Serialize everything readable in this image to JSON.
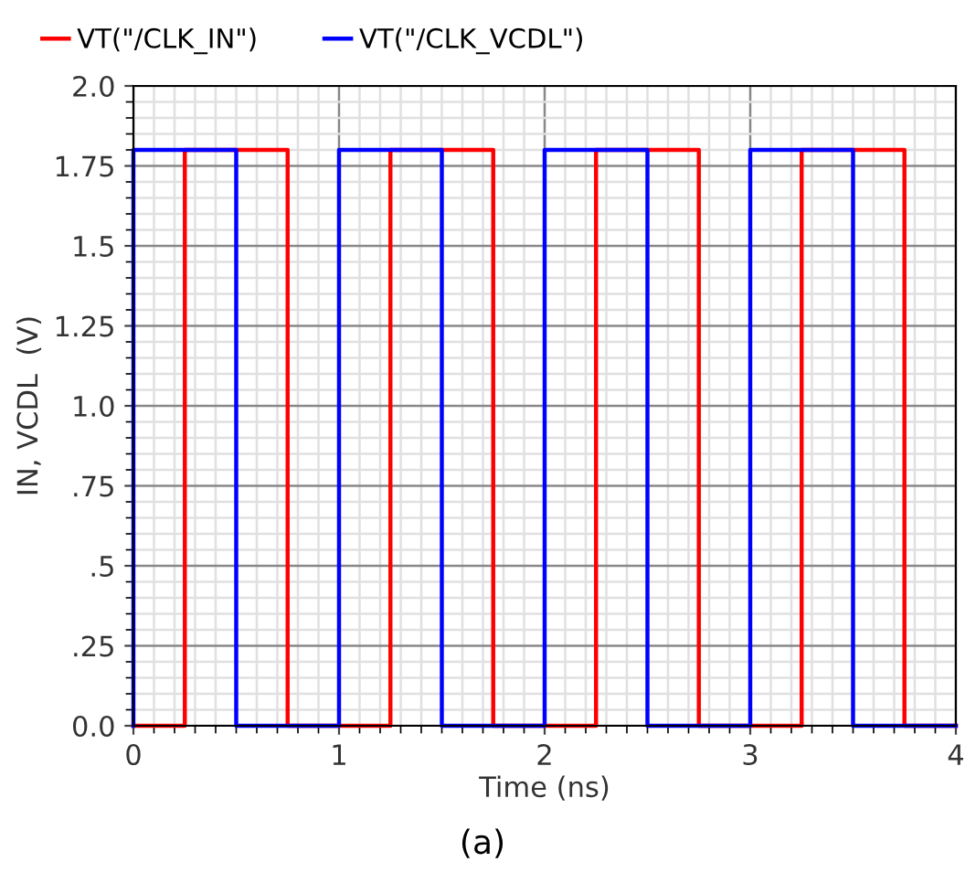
{
  "chart_data": {
    "type": "line",
    "xlabel": "Time (ns)",
    "ylabel": "IN, VCDL  (V)",
    "series": [
      {
        "name": "VT(\"/CLK_IN\")",
        "color": "#ff0000",
        "x": [
          0,
          0.25,
          0.25,
          0.75,
          0.75,
          1.25,
          1.25,
          1.75,
          1.75,
          2.25,
          2.25,
          2.75,
          2.75,
          3.25,
          3.25,
          3.75,
          3.75,
          4
        ],
        "values": [
          0,
          0,
          1.8,
          1.8,
          0,
          0,
          1.8,
          1.8,
          0,
          0,
          1.8,
          1.8,
          0,
          0,
          1.8,
          1.8,
          0,
          0
        ]
      },
      {
        "name": "VT(\"/CLK_VCDL\")",
        "color": "#0000ff",
        "x": [
          0,
          0,
          0.5,
          0.5,
          1,
          1,
          1.5,
          1.5,
          2,
          2,
          2.5,
          2.5,
          3,
          3,
          3.5,
          3.5,
          4
        ],
        "values": [
          0,
          1.8,
          1.8,
          0,
          0,
          1.8,
          1.8,
          0,
          0,
          1.8,
          1.8,
          0,
          0,
          1.8,
          1.8,
          0,
          0
        ]
      }
    ],
    "xlim": [
      0,
      4
    ],
    "xticks": [
      0,
      1,
      2,
      3,
      4
    ],
    "ylim": [
      0,
      2.0
    ],
    "yticks": [
      {
        "value": 0,
        "label": "0.0"
      },
      {
        "value": 0.25,
        "label": ".25"
      },
      {
        "value": 0.5,
        "label": ".5"
      },
      {
        "value": 0.75,
        "label": ".75"
      },
      {
        "value": 1.0,
        "label": "1.0"
      },
      {
        "value": 1.25,
        "label": "1.25"
      },
      {
        "value": 1.5,
        "label": "1.5"
      },
      {
        "value": 1.75,
        "label": "1.75"
      },
      {
        "value": 2.0,
        "label": "2.0"
      }
    ],
    "grid": true,
    "legend": "top left",
    "marker": "none",
    "line_style": "solid",
    "annotations": [
      "(a)"
    ]
  }
}
